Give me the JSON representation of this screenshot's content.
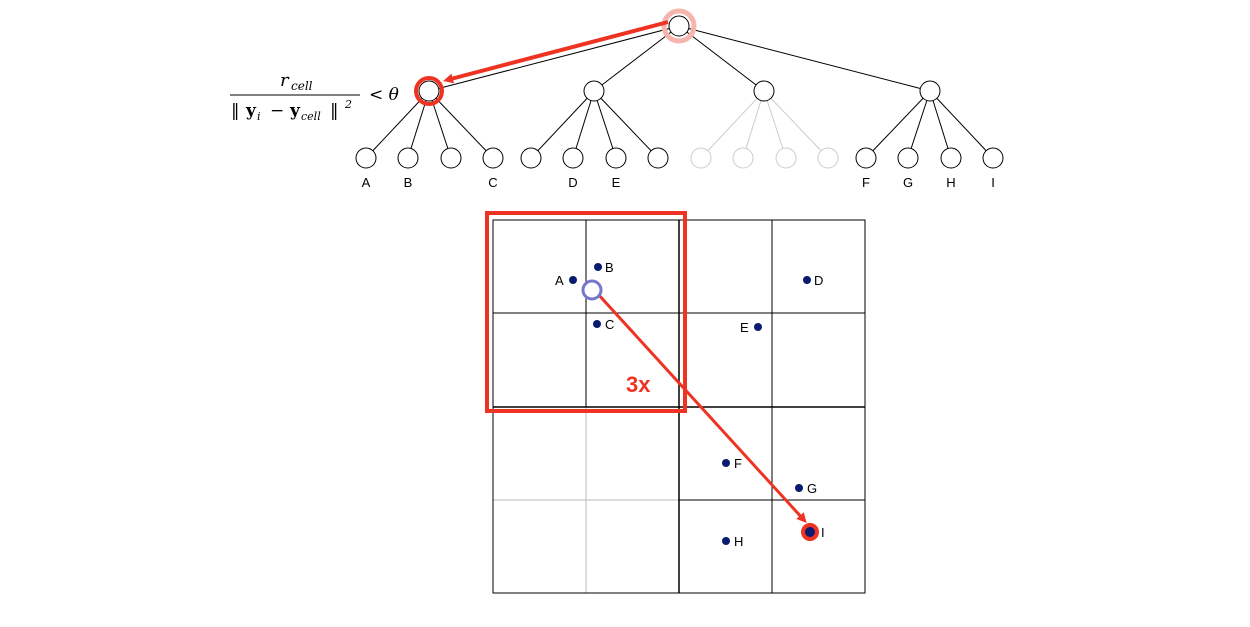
{
  "colors": {
    "highlight": "#ee3322",
    "highlight_light": "#f5b5ad",
    "query_point": "#7777cc",
    "dot": "#0a1a6e",
    "faded": "#cccccc",
    "line": "#000000"
  },
  "formula": {
    "numerator_r": "r",
    "numerator_sub": "cell",
    "denom_open": "‖",
    "denom_y": "y",
    "denom_i": "i",
    "denom_minus": "−",
    "denom_y2": "y",
    "denom_cell": "cell",
    "denom_close": "‖",
    "denom_exp": "2",
    "relation": "< θ"
  },
  "tree": {
    "leaf_labels": [
      "A",
      "B",
      "C",
      "D",
      "E",
      "F",
      "G",
      "H",
      "I"
    ]
  },
  "grid": {
    "points": [
      {
        "label": "A"
      },
      {
        "label": "B"
      },
      {
        "label": "C"
      },
      {
        "label": "D"
      },
      {
        "label": "E"
      },
      {
        "label": "F"
      },
      {
        "label": "G"
      },
      {
        "label": "H"
      },
      {
        "label": "I"
      }
    ],
    "annotation": "3x"
  }
}
